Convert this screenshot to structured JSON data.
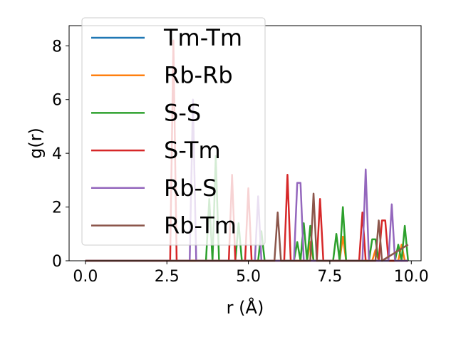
{
  "chart_data": {
    "type": "line",
    "title": "",
    "xlabel": "r (Å)",
    "ylabel": "g(r)",
    "xlim": [
      -0.5,
      10.3
    ],
    "ylim": [
      0,
      8.75
    ],
    "xticks": [
      0.0,
      2.5,
      5.0,
      7.5,
      10.0
    ],
    "xtick_labels": [
      "0.0",
      "2.5",
      "5.0",
      "7.5",
      "10.0"
    ],
    "yticks": [
      0,
      2,
      4,
      6,
      8
    ],
    "ytick_labels": [
      "0",
      "2",
      "4",
      "6",
      "8"
    ],
    "grid": false,
    "legend_position": "upper-left",
    "series": [
      {
        "name": "Tm-Tm",
        "color": "#1f77b4",
        "points": [
          [
            0,
            0
          ],
          [
            9.9,
            0
          ]
        ]
      },
      {
        "name": "Rb-Rb",
        "color": "#ff7f0e",
        "points": [
          [
            0,
            0
          ],
          [
            6.8,
            0
          ],
          [
            6.9,
            0.7
          ],
          [
            7.0,
            0
          ],
          [
            7.8,
            0
          ],
          [
            7.9,
            0.9
          ],
          [
            8.0,
            0
          ],
          [
            8.8,
            0
          ],
          [
            8.9,
            0.4
          ],
          [
            9.0,
            0
          ],
          [
            9.6,
            0
          ],
          [
            9.7,
            0.6
          ],
          [
            9.8,
            0
          ],
          [
            9.9,
            0
          ]
        ]
      },
      {
        "name": "S-S",
        "color": "#2ca02c",
        "points": [
          [
            0,
            0
          ],
          [
            3.7,
            0
          ],
          [
            3.8,
            2.3
          ],
          [
            3.9,
            0
          ],
          [
            4.0,
            3.9
          ],
          [
            4.1,
            0
          ],
          [
            4.6,
            0
          ],
          [
            4.7,
            1.4
          ],
          [
            4.8,
            0
          ],
          [
            5.3,
            0
          ],
          [
            5.4,
            1.1
          ],
          [
            5.5,
            0
          ],
          [
            6.4,
            0
          ],
          [
            6.5,
            0.7
          ],
          [
            6.6,
            0
          ],
          [
            6.7,
            1.4
          ],
          [
            6.8,
            0
          ],
          [
            6.9,
            1.3
          ],
          [
            7.0,
            0
          ],
          [
            7.6,
            0
          ],
          [
            7.7,
            1.0
          ],
          [
            7.8,
            0
          ],
          [
            7.9,
            2.0
          ],
          [
            8.0,
            0
          ],
          [
            8.7,
            0
          ],
          [
            8.8,
            0.8
          ],
          [
            8.9,
            0.8
          ],
          [
            9.0,
            0
          ],
          [
            9.5,
            0
          ],
          [
            9.6,
            0.6
          ],
          [
            9.7,
            0
          ],
          [
            9.8,
            1.3
          ],
          [
            9.9,
            0
          ]
        ]
      },
      {
        "name": "S-Tm",
        "color": "#d62728",
        "points": [
          [
            0,
            0
          ],
          [
            2.6,
            0
          ],
          [
            2.7,
            8.2
          ],
          [
            2.8,
            0
          ],
          [
            4.4,
            0
          ],
          [
            4.5,
            3.2
          ],
          [
            4.6,
            0
          ],
          [
            4.9,
            0
          ],
          [
            5.0,
            2.7
          ],
          [
            5.1,
            0
          ],
          [
            6.1,
            0
          ],
          [
            6.2,
            3.2
          ],
          [
            6.3,
            0
          ],
          [
            7.1,
            0
          ],
          [
            7.2,
            2.3
          ],
          [
            7.3,
            0
          ],
          [
            8.4,
            0
          ],
          [
            8.5,
            1.8
          ],
          [
            8.6,
            0
          ],
          [
            9.0,
            0
          ],
          [
            9.1,
            1.5
          ],
          [
            9.2,
            1.5
          ],
          [
            9.3,
            0
          ],
          [
            9.9,
            0
          ]
        ]
      },
      {
        "name": "Rb-S",
        "color": "#9467bd",
        "points": [
          [
            0,
            0
          ],
          [
            3.2,
            0
          ],
          [
            3.3,
            6.0
          ],
          [
            3.4,
            0
          ],
          [
            5.2,
            0
          ],
          [
            5.3,
            2.4
          ],
          [
            5.4,
            0
          ],
          [
            6.4,
            0
          ],
          [
            6.5,
            2.9
          ],
          [
            6.6,
            2.9
          ],
          [
            6.7,
            0
          ],
          [
            8.5,
            0
          ],
          [
            8.6,
            3.4
          ],
          [
            8.7,
            0
          ],
          [
            9.3,
            0
          ],
          [
            9.4,
            2.1
          ],
          [
            9.5,
            0
          ],
          [
            9.9,
            0
          ]
        ]
      },
      {
        "name": "Rb-Tm",
        "color": "#8c564b",
        "points": [
          [
            0,
            0
          ],
          [
            5.8,
            0
          ],
          [
            5.9,
            1.8
          ],
          [
            6.0,
            0
          ],
          [
            6.9,
            0
          ],
          [
            7.0,
            2.5
          ],
          [
            7.1,
            0
          ],
          [
            8.9,
            0
          ],
          [
            9.0,
            1.5
          ],
          [
            9.1,
            0
          ],
          [
            9.9,
            0.6
          ]
        ]
      }
    ]
  }
}
